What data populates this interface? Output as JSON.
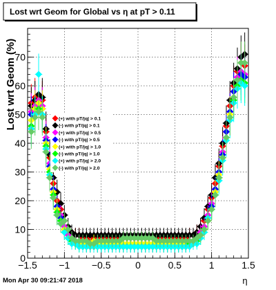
{
  "footer_timestamp": "Mon Apr 30 09:21:47 2018",
  "chart_data": {
    "type": "scatter",
    "title": "Lost wrt Geom for Global vs  η at pT > 0.11",
    "xlabel": "η",
    "ylabel": "Lost wrt Geom (%)",
    "xlim": [
      -1.5,
      1.5
    ],
    "ylim": [
      0,
      80
    ],
    "x_ticks": [
      -1.5,
      -1,
      -0.5,
      0,
      0.5,
      1,
      1.5
    ],
    "x_tick_labels": [
      "−1.5",
      "−1",
      "−0.5",
      "0",
      "0.5",
      "1",
      "1.5"
    ],
    "y_ticks": [
      0,
      10,
      20,
      30,
      40,
      50,
      60,
      70
    ],
    "y_tick_labels": [
      "0",
      "10",
      "20",
      "30",
      "40",
      "50",
      "60",
      "70"
    ],
    "grid": true,
    "legend_position": "left",
    "x": [
      -1.45,
      -1.4,
      -1.35,
      -1.3,
      -1.25,
      -1.2,
      -1.15,
      -1.1,
      -1.05,
      -1.0,
      -0.95,
      -0.9,
      -0.85,
      -0.8,
      -0.75,
      -0.7,
      -0.65,
      -0.6,
      -0.55,
      -0.5,
      -0.45,
      -0.4,
      -0.35,
      -0.3,
      -0.25,
      -0.2,
      -0.15,
      -0.1,
      -0.05,
      0.0,
      0.05,
      0.1,
      0.15,
      0.2,
      0.25,
      0.3,
      0.35,
      0.4,
      0.45,
      0.5,
      0.55,
      0.6,
      0.65,
      0.7,
      0.75,
      0.8,
      0.85,
      0.9,
      0.95,
      1.0,
      1.05,
      1.1,
      1.15,
      1.2,
      1.25,
      1.3,
      1.35,
      1.4,
      1.45
    ],
    "series": [
      {
        "name": "(+) with pT/|q| > 0.1",
        "color": "#ff0000",
        "marker": "diamond",
        "values": [
          54,
          56,
          57,
          55,
          44,
          35,
          26,
          20,
          17,
          13,
          10,
          9,
          8,
          8,
          7,
          7,
          7,
          7,
          7,
          7,
          7,
          7,
          7,
          7,
          7,
          7,
          7,
          7,
          7,
          7,
          7,
          7,
          7,
          7,
          7,
          7,
          7,
          7,
          7,
          7,
          7,
          7,
          7,
          8,
          8,
          9,
          11,
          13,
          17,
          21,
          26,
          32,
          39,
          46,
          53,
          60,
          65,
          68,
          67
        ]
      },
      {
        "name": "(-) with pT/|q| > 0.1",
        "color": "#000000",
        "marker": "diamond",
        "values": [
          53,
          55,
          57,
          56,
          45,
          36,
          28,
          23,
          19,
          15,
          11,
          9,
          8,
          8,
          8,
          8,
          8,
          8,
          8,
          8,
          8,
          8,
          8,
          8,
          8,
          8,
          8,
          8,
          8,
          8,
          8,
          8,
          8,
          8,
          8,
          8,
          8,
          8,
          8,
          8,
          8,
          8,
          8,
          8,
          8,
          9,
          11,
          14,
          18,
          22,
          28,
          33,
          40,
          47,
          55,
          61,
          66,
          70,
          71
        ]
      },
      {
        "name": "(+) with pT/|q| > 0.5",
        "color": "#ff00ff",
        "marker": "diamond",
        "values": [
          51,
          53,
          55,
          53,
          42,
          33,
          24,
          18,
          15,
          11,
          8,
          7,
          6,
          5,
          5,
          5,
          5,
          5,
          5,
          5,
          5,
          5,
          5,
          5,
          5,
          5,
          5,
          5,
          5,
          5,
          5,
          5,
          5,
          5,
          5,
          5,
          5,
          5,
          5,
          5,
          5,
          5,
          5,
          6,
          6,
          7,
          9,
          11,
          15,
          19,
          24,
          30,
          37,
          44,
          51,
          58,
          63,
          65,
          64
        ]
      },
      {
        "name": "(-) with pT/|q| > 0.5",
        "color": "#0000ff",
        "marker": "diamond",
        "values": [
          50,
          52,
          54,
          52,
          41,
          32,
          24,
          18,
          14,
          10,
          7,
          6,
          5,
          5,
          4,
          4,
          4,
          4,
          4,
          4,
          4,
          4,
          4,
          4,
          4,
          4,
          4,
          4,
          4,
          4,
          4,
          4,
          4,
          4,
          4,
          4,
          4,
          4,
          4,
          4,
          4,
          4,
          4,
          5,
          5,
          6,
          8,
          10,
          14,
          18,
          24,
          30,
          36,
          44,
          51,
          58,
          62,
          64,
          63
        ]
      },
      {
        "name": "(+) with pT/|q| > 1.0",
        "color": "#ffff00",
        "marker": "diamond",
        "values": [
          48,
          52,
          54,
          52,
          40,
          31,
          23,
          17,
          13,
          10,
          7,
          6,
          5,
          5,
          5,
          5,
          5,
          6,
          5,
          5,
          5,
          5,
          5,
          5,
          5,
          5,
          5,
          5,
          5,
          5,
          5,
          5,
          5,
          5,
          5,
          5,
          5,
          5,
          5,
          5,
          5,
          5,
          5,
          5,
          6,
          6,
          8,
          10,
          13,
          17,
          23,
          29,
          35,
          42,
          50,
          56,
          60,
          62,
          61
        ]
      },
      {
        "name": "(-) with pT/|q| > 1.0",
        "color": "#00ff00",
        "marker": "diamond",
        "values": [
          46,
          50,
          52,
          50,
          39,
          30,
          22,
          16,
          13,
          9,
          7,
          6,
          5,
          4,
          4,
          4,
          4,
          4,
          4,
          4,
          4,
          4,
          4,
          4,
          4,
          4,
          4,
          4,
          4,
          4,
          4,
          4,
          4,
          4,
          4,
          4,
          4,
          4,
          4,
          4,
          4,
          4,
          4,
          5,
          5,
          6,
          7,
          9,
          13,
          17,
          22,
          28,
          35,
          42,
          49,
          55,
          60,
          62,
          61
        ]
      },
      {
        "name": "(+) with pT/|q| > 2.0",
        "color": "#00ffff",
        "marker": "diamond",
        "values": [
          45,
          50,
          64,
          50,
          38,
          29,
          21,
          15,
          12,
          9,
          7,
          5,
          5,
          4,
          4,
          4,
          4,
          4,
          4,
          4,
          4,
          4,
          4,
          4,
          4,
          4,
          4,
          4,
          4,
          4,
          4,
          4,
          4,
          4,
          4,
          4,
          4,
          4,
          4,
          4,
          4,
          4,
          4,
          4,
          5,
          5,
          7,
          9,
          14,
          17,
          22,
          27,
          34,
          41,
          48,
          54,
          59,
          61,
          60
        ]
      },
      {
        "name": "(-) with pT/|q| > 2.0",
        "color": "#66cc66",
        "marker": "diamond",
        "values": [
          44,
          49,
          51,
          49,
          37,
          28,
          21,
          15,
          12,
          13,
          10,
          7,
          6,
          6,
          6,
          6,
          5,
          5,
          6,
          6,
          6,
          6,
          6,
          6,
          6,
          7,
          7,
          7,
          7,
          7,
          7,
          7,
          7,
          7,
          6,
          6,
          6,
          6,
          6,
          6,
          6,
          6,
          6,
          6,
          6,
          7,
          8,
          10,
          13,
          17,
          22,
          28,
          35,
          42,
          49,
          56,
          62,
          68,
          68
        ]
      }
    ]
  }
}
